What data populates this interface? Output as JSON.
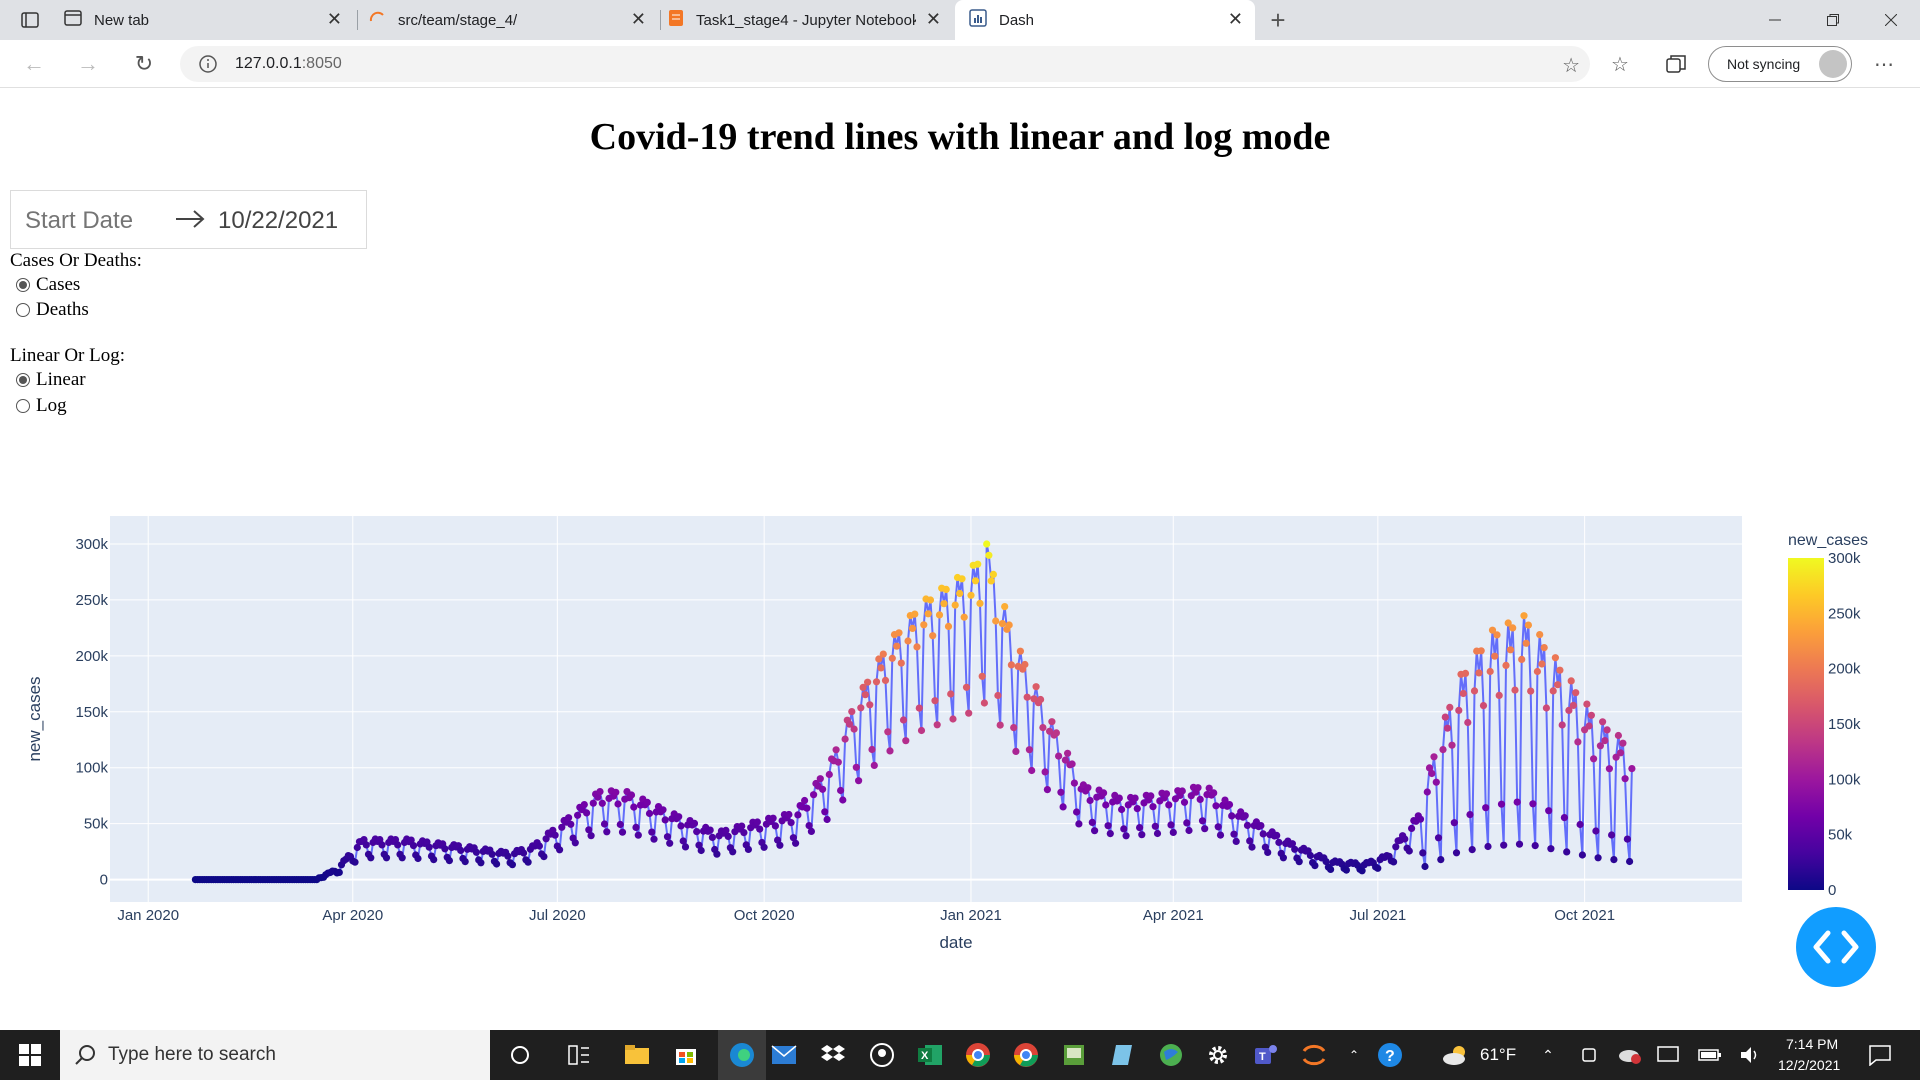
{
  "browser": {
    "tabs": [
      {
        "title": "New tab",
        "icon": "new-tab-icon"
      },
      {
        "title": "src/team/stage_4/",
        "icon": "jupyter-loading-icon"
      },
      {
        "title": "Task1_stage4 - Jupyter Notebook",
        "icon": "jupyter-notebook-icon"
      },
      {
        "title": "Dash",
        "icon": "dash-icon",
        "active": true
      }
    ],
    "url_host": "127.0.0.1",
    "url_port": ":8050",
    "sync_label": "Not syncing"
  },
  "page": {
    "title": "Covid-19 trend lines with linear and log mode",
    "date_picker": {
      "start_placeholder": "Start Date",
      "end_value": "10/22/2021"
    },
    "cases_or_deaths": {
      "label": "Cases Or Deaths:",
      "options": [
        "Cases",
        "Deaths"
      ],
      "selected": "Cases"
    },
    "linear_or_log": {
      "label": "Linear Or Log:",
      "options": [
        "Linear",
        "Log"
      ],
      "selected": "Linear"
    }
  },
  "chart_data": {
    "type": "line",
    "markers": true,
    "xlabel": "date",
    "ylabel": "new_cases",
    "x_ticks": [
      "Jan 2020",
      "Apr 2020",
      "Jul 2020",
      "Oct 2020",
      "Jan 2021",
      "Apr 2021",
      "Jul 2021",
      "Oct 2021"
    ],
    "y_ticks": [
      "0",
      "50k",
      "100k",
      "150k",
      "200k",
      "250k",
      "300k"
    ],
    "ylim": [
      -20000,
      325000
    ],
    "xlim": [
      "2019-12-15",
      "2021-12-10"
    ],
    "colorbar": {
      "title": "new_cases",
      "ticks": [
        "0",
        "50k",
        "100k",
        "150k",
        "200k",
        "250k",
        "300k"
      ],
      "range": [
        0,
        300000
      ]
    },
    "line_color": "#636efa",
    "plot_background": "#e5ecf6",
    "grid": true,
    "series": [
      {
        "x_start": "2020-01-22",
        "x_end": "2021-10-22",
        "anchors": [
          [
            "2020-01-22",
            0
          ],
          [
            "2020-03-15",
            0
          ],
          [
            "2020-03-25",
            8000
          ],
          [
            "2020-04-05",
            30000
          ],
          [
            "2020-04-25",
            30000
          ],
          [
            "2020-05-20",
            25000
          ],
          [
            "2020-06-10",
            20000
          ],
          [
            "2020-06-20",
            25000
          ],
          [
            "2020-07-05",
            45000
          ],
          [
            "2020-07-20",
            66000
          ],
          [
            "2020-08-01",
            65000
          ],
          [
            "2020-08-20",
            50000
          ],
          [
            "2020-09-10",
            35000
          ],
          [
            "2020-09-25",
            42000
          ],
          [
            "2020-10-15",
            50000
          ],
          [
            "2020-10-30",
            85000
          ],
          [
            "2020-11-10",
            130000
          ],
          [
            "2020-11-25",
            175000
          ],
          [
            "2020-12-10",
            205000
          ],
          [
            "2021-01-01",
            230000
          ],
          [
            "2021-01-08",
            245000
          ],
          [
            "2021-01-20",
            180000
          ],
          [
            "2021-02-05",
            120000
          ],
          [
            "2021-02-20",
            70000
          ],
          [
            "2021-03-10",
            60000
          ],
          [
            "2021-04-01",
            65000
          ],
          [
            "2021-04-15",
            70000
          ],
          [
            "2021-05-01",
            50000
          ],
          [
            "2021-05-20",
            30000
          ],
          [
            "2021-06-10",
            14000
          ],
          [
            "2021-06-25",
            12000
          ],
          [
            "2021-07-05",
            18000
          ],
          [
            "2021-07-20",
            50000
          ],
          [
            "2021-08-05",
            120000
          ],
          [
            "2021-08-20",
            150000
          ],
          [
            "2021-09-05",
            160000
          ],
          [
            "2021-09-20",
            130000
          ],
          [
            "2021-10-05",
            100000
          ],
          [
            "2021-10-22",
            80000
          ]
        ],
        "weekly_amplitude": 0.35,
        "peak": {
          "date": "2021-01-08",
          "value": 300000
        }
      }
    ]
  },
  "taskbar": {
    "search_placeholder": "Type here to search",
    "weather": "61°F",
    "time": "7:14 PM",
    "date": "12/2/2021"
  }
}
